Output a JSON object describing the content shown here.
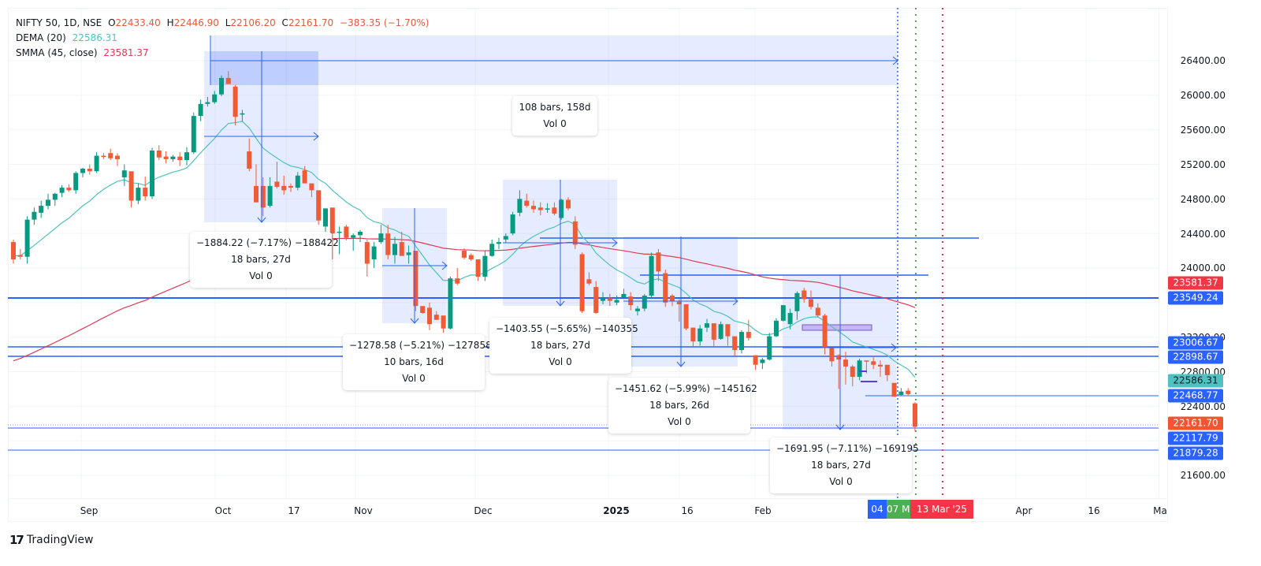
{
  "legend": {
    "symbol": "NIFTY 50, 1D, NSE",
    "open_label": "O",
    "open": "22433.40",
    "high_label": "H",
    "high": "22446.90",
    "low_label": "L",
    "low": "22106.20",
    "close_label": "C",
    "close": "22161.70",
    "change": "−383.35 (−1.70%)",
    "dema_label": "DEMA (20)",
    "dema_value": "22586.31",
    "smma_label": "SMMA (45, close)",
    "smma_value": "23581.37"
  },
  "price_axis": {
    "ticks": [
      "26400.00",
      "26000.00",
      "25600.00",
      "25200.00",
      "24800.00",
      "24400.00",
      "24000.00",
      "23200.00",
      "22800.00",
      "22400.00",
      "21600.00"
    ],
    "tags": [
      {
        "label": "23581.37",
        "color": "#f23645"
      },
      {
        "label": "23549.24",
        "color": "#2962ff"
      },
      {
        "label": "23006.67",
        "color": "#2962ff"
      },
      {
        "label": "22898.67",
        "color": "#2962ff"
      },
      {
        "label": "22586.31",
        "color": "#4fc1c0"
      },
      {
        "label": "22468.77",
        "color": "#2962ff"
      },
      {
        "label": "22161.70",
        "color": "#f4542f"
      },
      {
        "label": "22117.79",
        "color": "#2962ff"
      },
      {
        "label": "21879.28",
        "color": "#2962ff"
      }
    ]
  },
  "time_axis": {
    "labels": [
      "Sep",
      "Oct",
      "17",
      "Nov",
      "Dec",
      "2025",
      "16",
      "Feb",
      "Apr",
      "16",
      "Ma"
    ],
    "date_tags": [
      {
        "label": "04",
        "color": "#2962ff"
      },
      {
        "label": "07 Mar",
        "color": "#4caf50"
      },
      {
        "label": "13 Mar '25",
        "color": "#f23645"
      }
    ]
  },
  "measures": [
    {
      "line1": "",
      "line2": "108 bars, 158d",
      "line3": "Vol 0"
    },
    {
      "line1": "−1884.22 (−7.17%) −188422",
      "line2": "18 bars, 27d",
      "line3": "Vol 0"
    },
    {
      "line1": "−1278.58 (−5.21%) −127858",
      "line2": "10 bars, 16d",
      "line3": "Vol 0"
    },
    {
      "line1": "−1403.55 (−5.65%) −140355",
      "line2": "18 bars, 27d",
      "line3": "Vol 0"
    },
    {
      "line1": "−1451.62 (−5.99%) −145162",
      "line2": "18 bars, 26d",
      "line3": "Vol 0"
    },
    {
      "line1": "−1691.95 (−7.11%) −169195",
      "line2": "18 bars, 27d",
      "line3": "Vol 0"
    }
  ],
  "brand": {
    "name": "TradingView",
    "logo": "17"
  },
  "colors": {
    "up": "#089981",
    "down": "#f23645",
    "candle_down": "#ef5b35",
    "dema": "#4fc1c0",
    "smma": "#e03a55",
    "hline": "#2962ff",
    "measure_fill": "rgba(41,98,255,0.12)"
  },
  "chart_data": {
    "type": "candlestick",
    "title": "NIFTY 50, 1D, NSE",
    "ylim": [
      21400,
      26600
    ],
    "yticks": [
      21600,
      22000,
      22400,
      22800,
      23200,
      23600,
      24000,
      24400,
      24800,
      25200,
      25600,
      26000,
      26400
    ],
    "xticks": [
      "Sep",
      "Oct",
      "17",
      "Nov",
      "Dec",
      "2025",
      "16",
      "Feb",
      "Apr",
      "16",
      "Ma"
    ],
    "last_bar": {
      "open": 22433.4,
      "high": 22446.9,
      "low": 22106.2,
      "close": 22161.7,
      "change": -383.35,
      "change_pct": -1.7
    },
    "indicators": [
      {
        "name": "DEMA (20)",
        "last": 22586.31,
        "color": "#4fc1c0"
      },
      {
        "name": "SMMA (45, close)",
        "last": 23581.37,
        "color": "#e03a55"
      }
    ],
    "horizontal_levels": [
      24180,
      23760,
      23549.24,
      23006.67,
      22898.67,
      22468.77,
      22117.79,
      21879.28
    ],
    "measurements": [
      {
        "from": "Sep 27",
        "to": "Mar 4",
        "bars": 108,
        "days": 158
      },
      {
        "change": -1884.22,
        "pct": -7.17,
        "bars": 18,
        "days": 27
      },
      {
        "change": -1278.58,
        "pct": -5.21,
        "bars": 10,
        "days": 16
      },
      {
        "change": -1403.55,
        "pct": -5.65,
        "bars": 18,
        "days": 27
      },
      {
        "change": -1451.62,
        "pct": -5.99,
        "bars": 18,
        "days": 26
      },
      {
        "change": -1691.95,
        "pct": -7.11,
        "bars": 18,
        "days": 27
      }
    ],
    "candles": [
      [
        24300,
        24330,
        24050,
        24100
      ],
      [
        24150,
        24220,
        24100,
        24130
      ],
      [
        24130,
        24600,
        24050,
        24560
      ],
      [
        24560,
        24700,
        24500,
        24650
      ],
      [
        24640,
        24780,
        24580,
        24720
      ],
      [
        24720,
        24860,
        24680,
        24790
      ],
      [
        24790,
        24870,
        24720,
        24860
      ],
      [
        24870,
        24960,
        24820,
        24930
      ],
      [
        24930,
        24970,
        24880,
        24900
      ],
      [
        24900,
        25120,
        24860,
        25100
      ],
      [
        25100,
        25160,
        25050,
        25150
      ],
      [
        25150,
        25200,
        25080,
        25120
      ],
      [
        25120,
        25340,
        25100,
        25300
      ],
      [
        25300,
        25330,
        25260,
        25290
      ],
      [
        25330,
        25380,
        25250,
        25270
      ],
      [
        25300,
        25330,
        25180,
        25260
      ],
      [
        25050,
        25200,
        24950,
        25130
      ],
      [
        25120,
        25110,
        24700,
        24780
      ],
      [
        24780,
        24980,
        24740,
        24930
      ],
      [
        24930,
        25060,
        24780,
        24830
      ],
      [
        24830,
        25390,
        24800,
        25360
      ],
      [
        25360,
        25420,
        25250,
        25280
      ],
      [
        25290,
        25350,
        25210,
        25260
      ],
      [
        25260,
        25310,
        25230,
        25290
      ],
      [
        25290,
        25340,
        25180,
        25250
      ],
      [
        25250,
        25400,
        25190,
        25340
      ],
      [
        25340,
        25800,
        25320,
        25760
      ],
      [
        25760,
        25950,
        25700,
        25900
      ],
      [
        25900,
        25980,
        25870,
        25920
      ],
      [
        25920,
        26050,
        25900,
        26010
      ],
      [
        26010,
        26230,
        25990,
        26200
      ],
      [
        26200,
        26280,
        26150,
        26130
      ],
      [
        26100,
        26120,
        25650,
        25750
      ],
      [
        25780,
        25830,
        25700,
        25790
      ],
      [
        25350,
        25500,
        25120,
        25150
      ],
      [
        24950,
        25200,
        24850,
        24760
      ],
      [
        24950,
        25050,
        24600,
        24700
      ],
      [
        24720,
        25050,
        24700,
        24950
      ],
      [
        25000,
        25230,
        24920,
        24940
      ],
      [
        24950,
        25070,
        24850,
        24900
      ],
      [
        24950,
        24980,
        24880,
        24930
      ],
      [
        24930,
        25110,
        24900,
        25070
      ],
      [
        25130,
        25180,
        25000,
        24980
      ],
      [
        24980,
        24960,
        24820,
        24900
      ],
      [
        24900,
        24850,
        24500,
        24550
      ],
      [
        24480,
        24690,
        24250,
        24690
      ],
      [
        24700,
        24600,
        24100,
        24400
      ],
      [
        24420,
        24480,
        24160,
        24420
      ],
      [
        24480,
        24500,
        24320,
        24350
      ],
      [
        24350,
        24400,
        24200,
        24380
      ],
      [
        24380,
        24440,
        24300,
        24420
      ],
      [
        24300,
        24330,
        23900,
        24050
      ],
      [
        24100,
        24300,
        24000,
        24250
      ],
      [
        24300,
        24500,
        24280,
        24400
      ],
      [
        24400,
        24500,
        24100,
        24150
      ],
      [
        24150,
        24360,
        24050,
        24280
      ],
      [
        24300,
        24420,
        24150,
        24140
      ],
      [
        24150,
        24260,
        24050,
        24180
      ],
      [
        24200,
        24100,
        23500,
        23560
      ],
      [
        23560,
        23520,
        23470,
        23480
      ],
      [
        23540,
        23600,
        23280,
        23350
      ],
      [
        23460,
        23500,
        23400,
        23400
      ],
      [
        23450,
        23400,
        23250,
        23300
      ],
      [
        23300,
        23900,
        23290,
        23880
      ],
      [
        23880,
        24000,
        23800,
        23820
      ],
      [
        24200,
        24230,
        24100,
        24120
      ],
      [
        24150,
        24170,
        24080,
        24100
      ],
      [
        24100,
        24050,
        23850,
        23900
      ],
      [
        23900,
        24200,
        23850,
        24140
      ],
      [
        24140,
        24330,
        24130,
        24280
      ],
      [
        24280,
        24350,
        24220,
        24300
      ],
      [
        24330,
        24400,
        24290,
        24370
      ],
      [
        24400,
        24650,
        24380,
        24620
      ],
      [
        24640,
        24900,
        24600,
        24800
      ],
      [
        24780,
        24860,
        24700,
        24720
      ],
      [
        24720,
        24780,
        24640,
        24680
      ],
      [
        24700,
        24760,
        24610,
        24670
      ],
      [
        24680,
        24750,
        24640,
        24690
      ],
      [
        24700,
        24760,
        24610,
        24630
      ],
      [
        24580,
        24800,
        24560,
        24790
      ],
      [
        24790,
        24820,
        24670,
        24690
      ],
      [
        24540,
        24600,
        24220,
        24270
      ],
      [
        24160,
        24180,
        23480,
        23500
      ],
      [
        23870,
        23950,
        23800,
        23820
      ],
      [
        23780,
        23850,
        23470,
        23480
      ],
      [
        23620,
        23720,
        23580,
        23650
      ],
      [
        23650,
        23700,
        23560,
        23620
      ],
      [
        23600,
        23680,
        23570,
        23630
      ],
      [
        23660,
        23760,
        23640,
        23700
      ],
      [
        23670,
        23720,
        23510,
        23570
      ],
      [
        23500,
        23560,
        23450,
        23530
      ],
      [
        23530,
        23700,
        23500,
        23680
      ],
      [
        23680,
        24180,
        23660,
        24140
      ],
      [
        24180,
        24220,
        23850,
        23960
      ],
      [
        23940,
        23980,
        23550,
        23600
      ],
      [
        23680,
        23700,
        23560,
        23620
      ],
      [
        23610,
        23640,
        23380,
        23580
      ],
      [
        23580,
        23580,
        23280,
        23300
      ],
      [
        23310,
        23210,
        23090,
        23150
      ],
      [
        23150,
        23340,
        23100,
        23300
      ],
      [
        23310,
        23410,
        23260,
        23360
      ],
      [
        23360,
        23260,
        23080,
        23170
      ],
      [
        23180,
        23380,
        23170,
        23350
      ],
      [
        23350,
        23300,
        23100,
        23210
      ],
      [
        23210,
        23080,
        22980,
        23050
      ],
      [
        23050,
        23280,
        23010,
        23260
      ],
      [
        23260,
        23400,
        23160,
        23190
      ],
      [
        22990,
        22960,
        22820,
        22880
      ],
      [
        22900,
        22960,
        22830,
        22940
      ],
      [
        22940,
        23250,
        22930,
        23210
      ],
      [
        23210,
        23420,
        23200,
        23390
      ],
      [
        23390,
        23520,
        23380,
        23570
      ],
      [
        23350,
        23530,
        23290,
        23480
      ],
      [
        23500,
        23730,
        23400,
        23710
      ],
      [
        23740,
        23770,
        23600,
        23640
      ],
      [
        23640,
        23740,
        23520,
        23550
      ],
      [
        23540,
        23590,
        23430,
        23450
      ],
      [
        23450,
        23470,
        23000,
        23080
      ],
      [
        23080,
        23030,
        22860,
        22920
      ],
      [
        22990,
        23000,
        22600,
        22940
      ],
      [
        22940,
        23030,
        22650,
        22860
      ],
      [
        22860,
        22880,
        22630,
        22740
      ],
      [
        22740,
        22950,
        22700,
        22930
      ],
      [
        22930,
        22930,
        22780,
        22920
      ],
      [
        22920,
        22980,
        22830,
        22880
      ],
      [
        22880,
        22930,
        22740,
        22860
      ],
      [
        22880,
        22800,
        22690,
        22760
      ],
      [
        22670,
        22600,
        22530,
        22510
      ],
      [
        22530,
        22610,
        22520,
        22570
      ],
      [
        22580,
        22610,
        22520,
        22540
      ],
      [
        22433.4,
        22446.9,
        22106.2,
        22161.7
      ]
    ]
  }
}
